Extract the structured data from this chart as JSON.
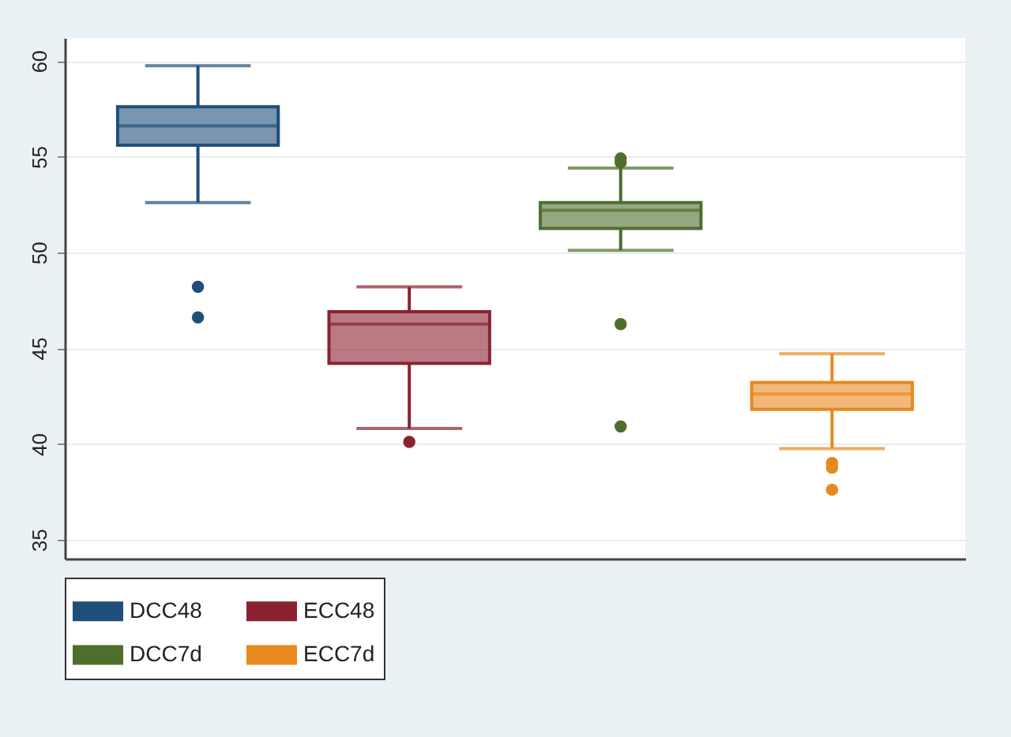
{
  "chart_data": {
    "type": "box",
    "categories": [
      null
    ],
    "series": [
      {
        "name": "DCC48",
        "color": "#1f4e79",
        "boxes": [
          {
            "low": 52.6,
            "q1": 55.6,
            "median": 56.6,
            "q3": 57.6,
            "high": 59.75,
            "outliers": [
              48.2,
              46.6
            ]
          }
        ]
      },
      {
        "name": "ECC48",
        "color": "#8b2232",
        "boxes": [
          {
            "low": 40.8,
            "q1": 44.2,
            "median": 46.25,
            "q3": 46.9,
            "high": 48.2,
            "outliers": [
              40.1
            ]
          }
        ]
      },
      {
        "name": "DCC7d",
        "color": "#4e6e2e",
        "boxes": [
          {
            "low": 50.1,
            "q1": 51.25,
            "median": 52.2,
            "q3": 52.6,
            "high": 54.4,
            "outliers": [
              54.9,
              54.7,
              46.25,
              40.9
            ]
          }
        ]
      },
      {
        "name": "ECC7d",
        "color": "#e8891f",
        "boxes": [
          {
            "low": 39.75,
            "q1": 41.8,
            "median": 42.6,
            "q3": 43.2,
            "high": 44.7,
            "outliers": [
              39.0,
              38.75,
              37.6
            ]
          }
        ]
      }
    ],
    "ylim": [
      34,
      61.2
    ],
    "yticks": [
      35,
      40,
      45,
      50,
      55,
      60
    ],
    "grid": "y",
    "legend": "bottom",
    "marker": "circle"
  }
}
